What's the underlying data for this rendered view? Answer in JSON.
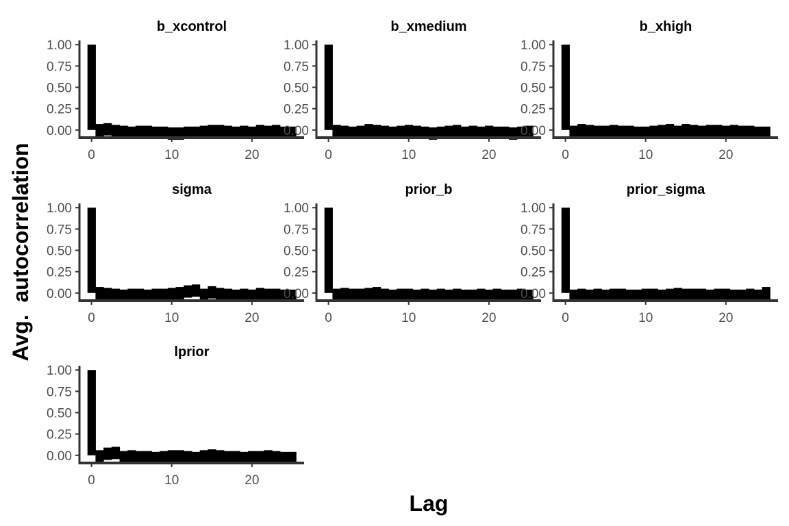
{
  "chart_data": {
    "type": "bar",
    "xlabel": "Lag",
    "ylabel": "Avg.  autocorrelation",
    "xlim": [
      -1.5,
      26.5
    ],
    "ylim": [
      -0.09,
      1.05
    ],
    "xticks": [
      0,
      10,
      20
    ],
    "yticks": [
      0.0,
      0.25,
      0.5,
      0.75,
      1.0
    ],
    "ytick_labels": [
      "0.00",
      "0.25",
      "0.50",
      "0.75",
      "1.00"
    ],
    "bar_color": "#000000",
    "axis_color": "#333333",
    "panels": [
      {
        "name": "b_xcontrol",
        "lags": [
          0,
          1,
          2,
          3,
          4,
          5,
          6,
          7,
          8,
          9,
          10,
          11,
          12,
          13,
          14,
          15,
          16,
          17,
          18,
          19,
          20,
          21,
          22,
          23,
          24,
          25
        ],
        "values": [
          1.0,
          0.07,
          0.08,
          0.06,
          0.05,
          0.04,
          0.05,
          0.05,
          0.04,
          0.04,
          0.03,
          0.03,
          0.04,
          0.04,
          0.05,
          0.06,
          0.06,
          0.05,
          0.04,
          0.05,
          0.04,
          0.06,
          0.05,
          0.06,
          0.04,
          0.04
        ]
      },
      {
        "name": "b_xmedium",
        "lags": [
          0,
          1,
          2,
          3,
          4,
          5,
          6,
          7,
          8,
          9,
          10,
          11,
          12,
          13,
          14,
          15,
          16,
          17,
          18,
          19,
          20,
          21,
          22,
          23,
          24,
          25
        ],
        "values": [
          1.0,
          0.06,
          0.05,
          0.04,
          0.05,
          0.07,
          0.06,
          0.05,
          0.04,
          0.05,
          0.06,
          0.05,
          0.04,
          0.03,
          0.04,
          0.05,
          0.06,
          0.04,
          0.05,
          0.04,
          0.05,
          0.04,
          0.04,
          0.03,
          0.04,
          0.05
        ]
      },
      {
        "name": "b_xhigh",
        "lags": [
          0,
          1,
          2,
          3,
          4,
          5,
          6,
          7,
          8,
          9,
          10,
          11,
          12,
          13,
          14,
          15,
          16,
          17,
          18,
          19,
          20,
          21,
          22,
          23,
          24,
          25
        ],
        "values": [
          1.0,
          0.05,
          0.07,
          0.06,
          0.05,
          0.05,
          0.06,
          0.05,
          0.05,
          0.04,
          0.04,
          0.05,
          0.06,
          0.07,
          0.05,
          0.07,
          0.06,
          0.05,
          0.06,
          0.06,
          0.05,
          0.06,
          0.05,
          0.05,
          0.04,
          0.04
        ]
      },
      {
        "name": "sigma",
        "lags": [
          0,
          1,
          2,
          3,
          4,
          5,
          6,
          7,
          8,
          9,
          10,
          11,
          12,
          13,
          14,
          15,
          16,
          17,
          18,
          19,
          20,
          21,
          22,
          23,
          24,
          25
        ],
        "values": [
          1.0,
          0.07,
          0.06,
          0.05,
          0.04,
          0.05,
          0.05,
          0.04,
          0.05,
          0.05,
          0.06,
          0.07,
          0.09,
          0.1,
          0.05,
          0.08,
          0.06,
          0.05,
          0.04,
          0.05,
          0.04,
          0.06,
          0.05,
          0.05,
          0.04,
          0.04
        ]
      },
      {
        "name": "prior_b",
        "lags": [
          0,
          1,
          2,
          3,
          4,
          5,
          6,
          7,
          8,
          9,
          10,
          11,
          12,
          13,
          14,
          15,
          16,
          17,
          18,
          19,
          20,
          21,
          22,
          23,
          24,
          25
        ],
        "values": [
          1.0,
          0.05,
          0.06,
          0.05,
          0.05,
          0.06,
          0.07,
          0.05,
          0.04,
          0.05,
          0.05,
          0.04,
          0.05,
          0.04,
          0.05,
          0.04,
          0.05,
          0.04,
          0.04,
          0.05,
          0.04,
          0.05,
          0.04,
          0.04,
          0.05,
          0.04
        ]
      },
      {
        "name": "prior_sigma",
        "lags": [
          0,
          1,
          2,
          3,
          4,
          5,
          6,
          7,
          8,
          9,
          10,
          11,
          12,
          13,
          14,
          15,
          16,
          17,
          18,
          19,
          20,
          21,
          22,
          23,
          24,
          25
        ],
        "values": [
          1.0,
          0.04,
          0.05,
          0.04,
          0.05,
          0.04,
          0.05,
          0.05,
          0.04,
          0.04,
          0.05,
          0.05,
          0.04,
          0.05,
          0.06,
          0.05,
          0.05,
          0.05,
          0.04,
          0.05,
          0.05,
          0.04,
          0.04,
          0.05,
          0.04,
          0.07
        ]
      },
      {
        "name": "lprior",
        "lags": [
          0,
          1,
          2,
          3,
          4,
          5,
          6,
          7,
          8,
          9,
          10,
          11,
          12,
          13,
          14,
          15,
          16,
          17,
          18,
          19,
          20,
          21,
          22,
          23,
          24,
          25
        ],
        "values": [
          1.0,
          0.06,
          0.09,
          0.1,
          0.05,
          0.06,
          0.05,
          0.05,
          0.04,
          0.05,
          0.06,
          0.06,
          0.05,
          0.04,
          0.06,
          0.07,
          0.06,
          0.05,
          0.05,
          0.04,
          0.05,
          0.05,
          0.06,
          0.05,
          0.04,
          0.04
        ]
      }
    ]
  }
}
